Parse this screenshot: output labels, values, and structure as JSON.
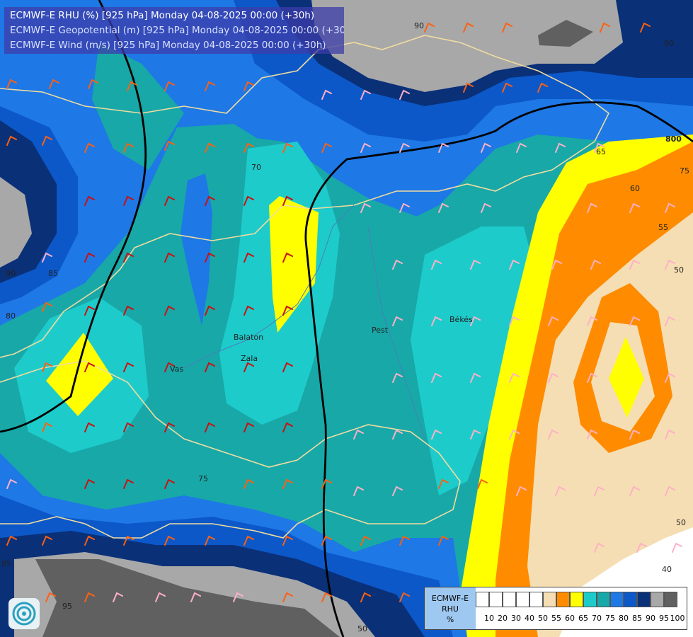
{
  "titles": {
    "line1": "ECMWF-E RHU (%) [925 hPa] Monday 04-08-2025 00:00 (+30h)",
    "line2": "ECMWF-E Geopotential (m) [925 hPa] Monday 04-08-2025 00:00 (+30h)",
    "line3": "ECMWF-E Wind (m/s) [925 hPa] Monday 04-08-2025 00:00 (+30h)"
  },
  "legend": {
    "label_line1": "ECMWF-E",
    "label_line2": "RHU",
    "label_line3": "%",
    "colors": [
      "#ffffff",
      "#ffffff",
      "#ffffff",
      "#ffffff",
      "#ffffff",
      "#f5deb3",
      "#ff8c00",
      "#ffff00",
      "#1ecbcb",
      "#18a8a8",
      "#1e78e6",
      "#0c58c8",
      "#0a3078",
      "#a8a8a8",
      "#606060"
    ],
    "ticks": [
      "10",
      "20",
      "30",
      "40",
      "50",
      "55",
      "60",
      "65",
      "70",
      "75",
      "80",
      "85",
      "90",
      "95",
      "100"
    ]
  },
  "contour_labels": {
    "geopotential": "800",
    "rhu": [
      "90",
      "80",
      "75",
      "70",
      "65",
      "60",
      "55",
      "50",
      "50",
      "40",
      "85",
      "80",
      "75",
      "95",
      "85",
      "90",
      "50"
    ]
  },
  "places": [
    "Vas",
    "Zala",
    "Balaton",
    "Pest",
    "Békés"
  ],
  "icons": {
    "logo": "ecmwf-logo-icon"
  }
}
